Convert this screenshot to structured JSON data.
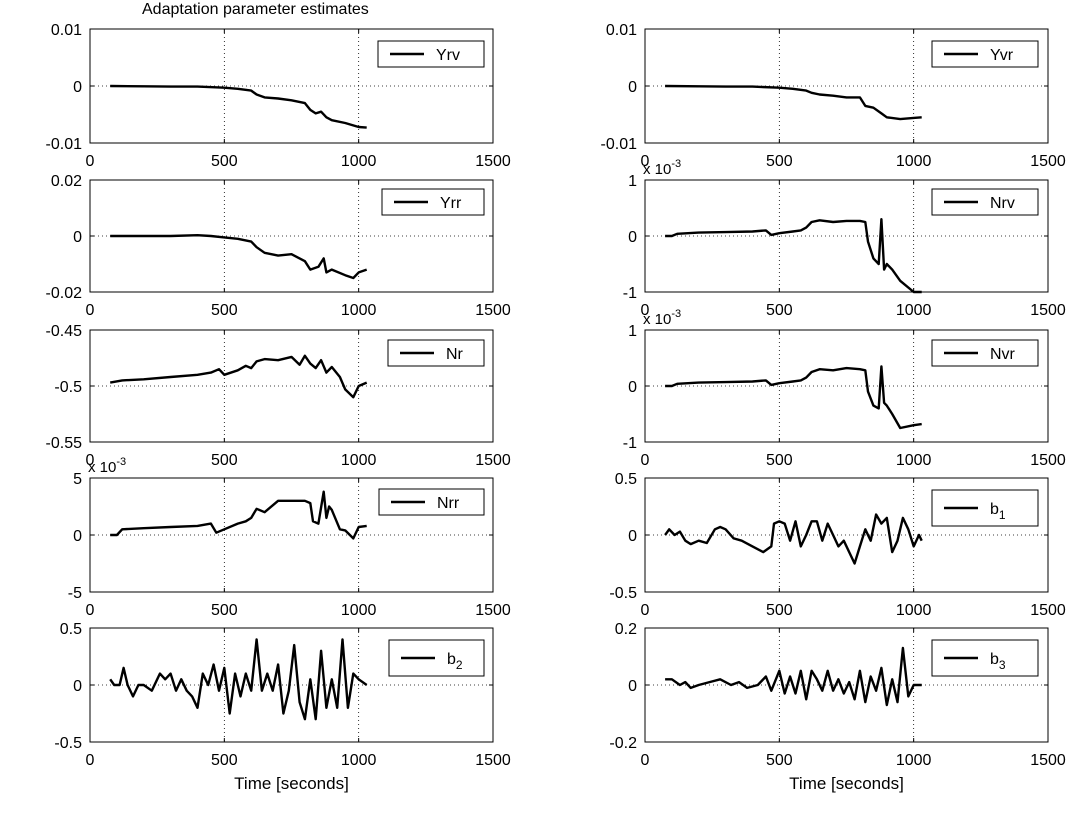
{
  "figure_title": "Adaptation parameter estimates",
  "chart_data": [
    {
      "type": "line",
      "id": "yrv",
      "legend": "Yrv",
      "legend_sub": "",
      "xlim": [
        0,
        1500
      ],
      "ylim": [
        -0.01,
        0.01
      ],
      "xticks": [
        "0",
        "500",
        "1000",
        "1500"
      ],
      "yticks": [
        "-0.01",
        "0",
        "0.01"
      ],
      "exponent": "",
      "xlabel": "",
      "x": [
        75,
        200,
        300,
        400,
        500,
        550,
        600,
        620,
        650,
        700,
        750,
        800,
        820,
        840,
        860,
        880,
        900,
        950,
        1000,
        1030
      ],
      "y": [
        0,
        -5e-05,
        -0.0001,
        -0.0001,
        -0.0003,
        -0.0005,
        -0.0008,
        -0.0015,
        -0.002,
        -0.0022,
        -0.0025,
        -0.003,
        -0.0042,
        -0.0048,
        -0.0045,
        -0.0055,
        -0.006,
        -0.0065,
        -0.0072,
        -0.0073
      ]
    },
    {
      "type": "line",
      "id": "yvr",
      "legend": "Yvr",
      "legend_sub": "",
      "xlim": [
        0,
        1500
      ],
      "ylim": [
        -0.01,
        0.01
      ],
      "xticks": [
        "0",
        "500",
        "1000",
        "1500"
      ],
      "yticks": [
        "-0.01",
        "0",
        "0.01"
      ],
      "exponent": "",
      "xlabel": "",
      "x": [
        75,
        200,
        300,
        400,
        500,
        550,
        600,
        620,
        650,
        700,
        750,
        800,
        820,
        850,
        880,
        900,
        950,
        1000,
        1030
      ],
      "y": [
        0,
        -5e-05,
        -0.0001,
        -0.0001,
        -0.0003,
        -0.0005,
        -0.0008,
        -0.0012,
        -0.0015,
        -0.0017,
        -0.002,
        -0.002,
        -0.0035,
        -0.0038,
        -0.0048,
        -0.0055,
        -0.0058,
        -0.0056,
        -0.0055
      ]
    },
    {
      "type": "line",
      "id": "yrr",
      "legend": "Yrr",
      "legend_sub": "",
      "xlim": [
        0,
        1500
      ],
      "ylim": [
        -0.02,
        0.02
      ],
      "xticks": [
        "0",
        "500",
        "1000",
        "1500"
      ],
      "yticks": [
        "-0.02",
        "0",
        "0.02"
      ],
      "exponent": "",
      "xlabel": "",
      "x": [
        75,
        200,
        300,
        400,
        450,
        500,
        550,
        600,
        620,
        650,
        700,
        750,
        800,
        820,
        850,
        870,
        880,
        900,
        950,
        980,
        1000,
        1030
      ],
      "y": [
        0,
        0,
        0,
        0.0003,
        0,
        -0.0005,
        -0.001,
        -0.002,
        -0.004,
        -0.006,
        -0.007,
        -0.0065,
        -0.009,
        -0.012,
        -0.011,
        -0.008,
        -0.013,
        -0.012,
        -0.014,
        -0.015,
        -0.013,
        -0.012
      ]
    },
    {
      "type": "line",
      "id": "nrv",
      "legend": "Nrv",
      "legend_sub": "",
      "xlim": [
        0,
        1500
      ],
      "ylim": [
        -1,
        1
      ],
      "xticks": [
        "0",
        "500",
        "1000",
        "1500"
      ],
      "yticks": [
        "-1",
        "0",
        "1"
      ],
      "exponent": "x 10-3",
      "xlabel": "",
      "x": [
        75,
        100,
        120,
        200,
        300,
        400,
        450,
        470,
        500,
        550,
        580,
        600,
        620,
        650,
        700,
        750,
        800,
        820,
        830,
        850,
        870,
        880,
        890,
        900,
        920,
        950,
        1000,
        1030
      ],
      "y": [
        0,
        0,
        0.04,
        0.06,
        0.07,
        0.08,
        0.1,
        0.02,
        0.05,
        0.08,
        0.1,
        0.15,
        0.25,
        0.28,
        0.25,
        0.27,
        0.27,
        0.25,
        -0.1,
        -0.4,
        -0.5,
        0.3,
        -0.6,
        -0.5,
        -0.6,
        -0.8,
        -1,
        -1
      ]
    },
    {
      "type": "line",
      "id": "nr",
      "legend": "Nr",
      "legend_sub": "",
      "xlim": [
        0,
        1500
      ],
      "ylim": [
        -0.55,
        -0.45
      ],
      "xticks": [
        "0",
        "500",
        "1000",
        "1500"
      ],
      "yticks": [
        "-0.55",
        "-0.5",
        "-0.45"
      ],
      "exponent": "",
      "xlabel": "",
      "x": [
        75,
        120,
        200,
        300,
        400,
        450,
        480,
        500,
        550,
        580,
        600,
        620,
        650,
        700,
        750,
        780,
        800,
        820,
        840,
        860,
        880,
        900,
        930,
        950,
        980,
        1000,
        1030
      ],
      "y": [
        -0.497,
        -0.495,
        -0.494,
        -0.492,
        -0.49,
        -0.488,
        -0.485,
        -0.49,
        -0.486,
        -0.482,
        -0.484,
        -0.478,
        -0.476,
        -0.477,
        -0.474,
        -0.481,
        -0.473,
        -0.48,
        -0.484,
        -0.477,
        -0.488,
        -0.483,
        -0.492,
        -0.503,
        -0.51,
        -0.5,
        -0.497
      ]
    },
    {
      "type": "line",
      "id": "nvr",
      "legend": "Nvr",
      "legend_sub": "",
      "xlim": [
        0,
        1500
      ],
      "ylim": [
        -1,
        1
      ],
      "xticks": [
        "0",
        "500",
        "1000",
        "1500"
      ],
      "yticks": [
        "-1",
        "0",
        "1"
      ],
      "exponent": "x 10-3",
      "xlabel": "",
      "x": [
        75,
        100,
        120,
        200,
        300,
        400,
        450,
        470,
        500,
        550,
        580,
        600,
        620,
        650,
        700,
        750,
        800,
        820,
        830,
        850,
        870,
        880,
        890,
        900,
        920,
        950,
        1000,
        1030
      ],
      "y": [
        0,
        0,
        0.04,
        0.06,
        0.07,
        0.08,
        0.1,
        0.02,
        0.05,
        0.08,
        0.1,
        0.15,
        0.25,
        0.3,
        0.28,
        0.32,
        0.3,
        0.28,
        -0.1,
        -0.35,
        -0.4,
        0.35,
        -0.3,
        -0.35,
        -0.5,
        -0.75,
        -0.7,
        -0.68
      ]
    },
    {
      "type": "line",
      "id": "nrr",
      "legend": "Nrr",
      "legend_sub": "",
      "xlim": [
        0,
        1500
      ],
      "ylim": [
        -5,
        5
      ],
      "xticks": [
        "0",
        "500",
        "1000",
        "1500"
      ],
      "yticks": [
        "-5",
        "0",
        "5"
      ],
      "exponent": "x 10-3",
      "xlabel": "",
      "x": [
        75,
        100,
        120,
        200,
        300,
        400,
        450,
        470,
        500,
        550,
        580,
        600,
        620,
        650,
        700,
        750,
        800,
        820,
        830,
        850,
        870,
        880,
        890,
        900,
        930,
        950,
        980,
        1000,
        1030
      ],
      "y": [
        0,
        0,
        0.5,
        0.6,
        0.7,
        0.8,
        1,
        0.2,
        0.5,
        1,
        1.2,
        1.5,
        2.3,
        2,
        3,
        3,
        3,
        2.8,
        1.2,
        1,
        3.8,
        1.5,
        2.5,
        2.2,
        0.5,
        0.4,
        -0.3,
        0.7,
        0.8
      ]
    },
    {
      "type": "line",
      "id": "b1",
      "legend": "b",
      "legend_sub": "1",
      "xlim": [
        0,
        1500
      ],
      "ylim": [
        -0.5,
        0.5
      ],
      "xticks": [
        "0",
        "500",
        "1000",
        "1500"
      ],
      "yticks": [
        "-0.5",
        "0",
        "0.5"
      ],
      "exponent": "",
      "xlabel": "",
      "x": [
        75,
        90,
        110,
        130,
        150,
        170,
        200,
        230,
        260,
        280,
        300,
        330,
        360,
        400,
        440,
        470,
        480,
        500,
        520,
        540,
        560,
        580,
        600,
        620,
        640,
        660,
        680,
        700,
        720,
        740,
        760,
        780,
        800,
        820,
        840,
        860,
        880,
        900,
        920,
        940,
        960,
        980,
        1000,
        1020,
        1030
      ],
      "y": [
        0,
        0.05,
        0,
        0.03,
        -0.05,
        -0.08,
        -0.05,
        -0.07,
        0.05,
        0.07,
        0.05,
        -0.03,
        -0.05,
        -0.1,
        -0.15,
        -0.1,
        0.1,
        0.12,
        0.1,
        -0.05,
        0.12,
        -0.1,
        0,
        0.12,
        0.12,
        -0.05,
        0.1,
        0,
        -0.1,
        -0.05,
        -0.15,
        -0.25,
        -0.1,
        0.05,
        -0.05,
        0.18,
        0.1,
        0.15,
        -0.15,
        -0.05,
        0.15,
        0.05,
        -0.1,
        0,
        -0.05
      ]
    },
    {
      "type": "line",
      "id": "b2",
      "legend": "b",
      "legend_sub": "2",
      "xlim": [
        0,
        1500
      ],
      "ylim": [
        -0.5,
        0.5
      ],
      "xticks": [
        "0",
        "500",
        "1000",
        "1500"
      ],
      "yticks": [
        "-0.5",
        "0",
        "0.5"
      ],
      "exponent": "",
      "xlabel": "Time [seconds]",
      "x": [
        75,
        90,
        110,
        125,
        140,
        160,
        180,
        200,
        230,
        260,
        280,
        300,
        320,
        340,
        360,
        380,
        400,
        420,
        440,
        460,
        480,
        500,
        520,
        540,
        560,
        580,
        600,
        620,
        640,
        660,
        680,
        700,
        720,
        740,
        760,
        780,
        800,
        820,
        840,
        860,
        880,
        900,
        920,
        940,
        960,
        980,
        1000,
        1030
      ],
      "y": [
        0.05,
        0,
        0,
        0.15,
        0,
        -0.1,
        0,
        0,
        -0.05,
        0.1,
        0.05,
        0.1,
        -0.05,
        0.05,
        -0.05,
        -0.1,
        -0.2,
        0.1,
        0,
        0.18,
        -0.05,
        0.15,
        -0.25,
        0.1,
        -0.1,
        0.1,
        -0.05,
        0.4,
        -0.05,
        0.1,
        -0.05,
        0.18,
        -0.25,
        -0.05,
        0.35,
        -0.15,
        -0.3,
        0.05,
        -0.3,
        0.3,
        -0.2,
        0.05,
        -0.2,
        0.4,
        -0.2,
        0.1,
        0.05,
        0
      ]
    },
    {
      "type": "line",
      "id": "b3",
      "legend": "b",
      "legend_sub": "3",
      "xlim": [
        0,
        1500
      ],
      "ylim": [
        -0.2,
        0.2
      ],
      "xticks": [
        "0",
        "500",
        "1000",
        "1500"
      ],
      "yticks": [
        "-0.2",
        "0",
        "0.2"
      ],
      "exponent": "",
      "xlabel": "Time [seconds]",
      "x": [
        75,
        100,
        130,
        150,
        170,
        200,
        240,
        280,
        320,
        350,
        380,
        420,
        450,
        470,
        500,
        520,
        540,
        560,
        580,
        600,
        620,
        640,
        660,
        680,
        700,
        720,
        740,
        760,
        780,
        800,
        820,
        840,
        860,
        880,
        900,
        920,
        940,
        960,
        980,
        1000,
        1030
      ],
      "y": [
        0.02,
        0.02,
        0,
        0.01,
        -0.01,
        0,
        0.01,
        0.02,
        0,
        0.01,
        -0.01,
        0,
        0.03,
        -0.02,
        0.05,
        -0.03,
        0.03,
        -0.03,
        0.05,
        -0.05,
        0.05,
        0.02,
        -0.02,
        0.05,
        -0.02,
        0.02,
        -0.03,
        0.01,
        -0.05,
        0.05,
        -0.06,
        0.03,
        -0.02,
        0.06,
        -0.07,
        0.02,
        -0.06,
        0.13,
        -0.04,
        0,
        0
      ]
    }
  ]
}
